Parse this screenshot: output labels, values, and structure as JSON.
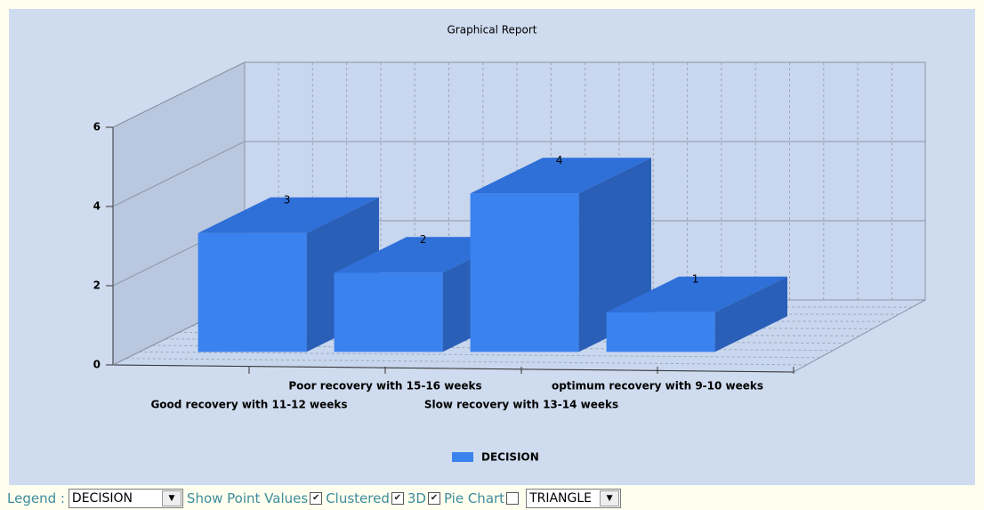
{
  "chart_data": {
    "type": "bar",
    "title": "Graphical Report",
    "categories": [
      "Good recovery with 11-12 weeks",
      "Poor recovery with 15-16 weeks",
      "Slow recovery with 13-14 weeks",
      "optimum recovery with 9-10 weeks"
    ],
    "series": [
      {
        "name": "DECISION",
        "color": "#3a82ee",
        "values": [
          3,
          2,
          4,
          1
        ]
      }
    ],
    "ylim": [
      0,
      6
    ],
    "yticks": [
      0,
      2,
      4,
      6
    ],
    "grid": true,
    "show_point_values": true,
    "three_d": true
  },
  "controls": {
    "legend_label": "Legend :",
    "legend_select": "DECISION",
    "shape_select": "TRIANGLE",
    "checks": [
      {
        "label": "Show Point Values",
        "checked": true
      },
      {
        "label": "Clustered",
        "checked": true
      },
      {
        "label": "3D",
        "checked": true
      },
      {
        "label": "Pie Chart",
        "checked": false
      }
    ]
  }
}
